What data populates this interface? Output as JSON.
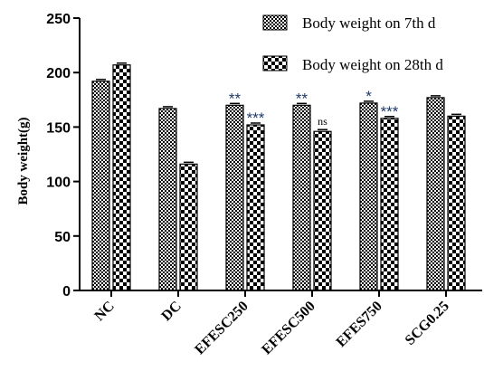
{
  "chart_data": {
    "type": "bar",
    "title": "",
    "xlabel": "",
    "ylabel": "Body weight(g)",
    "ylim": [
      0,
      250
    ],
    "yticks": [
      0,
      50,
      100,
      150,
      200,
      250
    ],
    "grid": false,
    "legend_position": "top-right",
    "categories": [
      "NC",
      "DC",
      "EFESC250",
      "EFESC500",
      "EFES750",
      "SCG0.25"
    ],
    "series": [
      {
        "name": "Body weight on  7th d",
        "values": [
          192,
          167,
          170,
          170,
          172,
          177
        ],
        "pattern": "checker-fine",
        "annotations": [
          "",
          "",
          "**",
          "**",
          "*",
          ""
        ]
      },
      {
        "name": "Body weight on  28th d",
        "values": [
          207,
          116,
          152,
          146,
          158,
          160
        ],
        "pattern": "checker-coarse",
        "annotations": [
          "",
          "",
          "***",
          "ns",
          "***",
          ""
        ]
      }
    ],
    "colors": {
      "bar_stroke": "#000000",
      "annotation": "#1f3a6b"
    }
  }
}
